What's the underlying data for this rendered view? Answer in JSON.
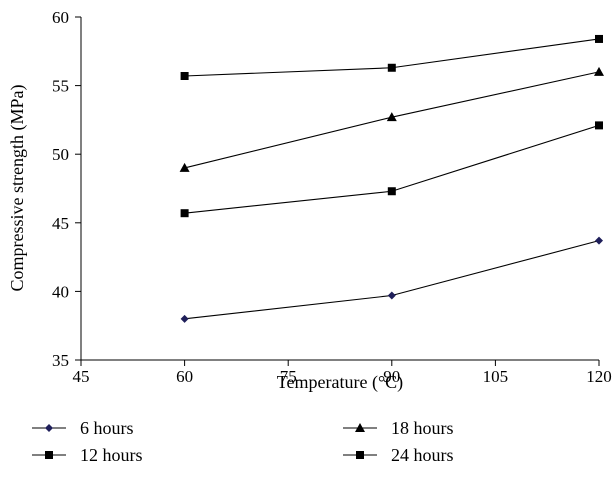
{
  "chart_data": {
    "type": "line",
    "xlabel": "Temperature (°C)",
    "ylabel": "Compressive strength (MPa)",
    "xlim": [
      45,
      120
    ],
    "ylim": [
      35,
      60
    ],
    "xticks": [
      45,
      60,
      75,
      90,
      105,
      120
    ],
    "yticks": [
      35,
      40,
      45,
      50,
      55,
      60
    ],
    "x": [
      60,
      90,
      120
    ],
    "grid": false,
    "legend_position": "bottom",
    "series": [
      {
        "name": "6 hours",
        "marker": "diamond",
        "color": "#1f1f5a",
        "values": [
          38.0,
          39.7,
          43.7
        ]
      },
      {
        "name": "12 hours",
        "marker": "square",
        "color": "#000000",
        "values": [
          45.7,
          47.3,
          52.1
        ]
      },
      {
        "name": "18 hours",
        "marker": "triangle",
        "color": "#000000",
        "values": [
          49.0,
          52.7,
          56.0
        ]
      },
      {
        "name": "24 hours",
        "marker": "square",
        "color": "#000000",
        "values": [
          55.7,
          56.3,
          58.4
        ]
      }
    ]
  }
}
